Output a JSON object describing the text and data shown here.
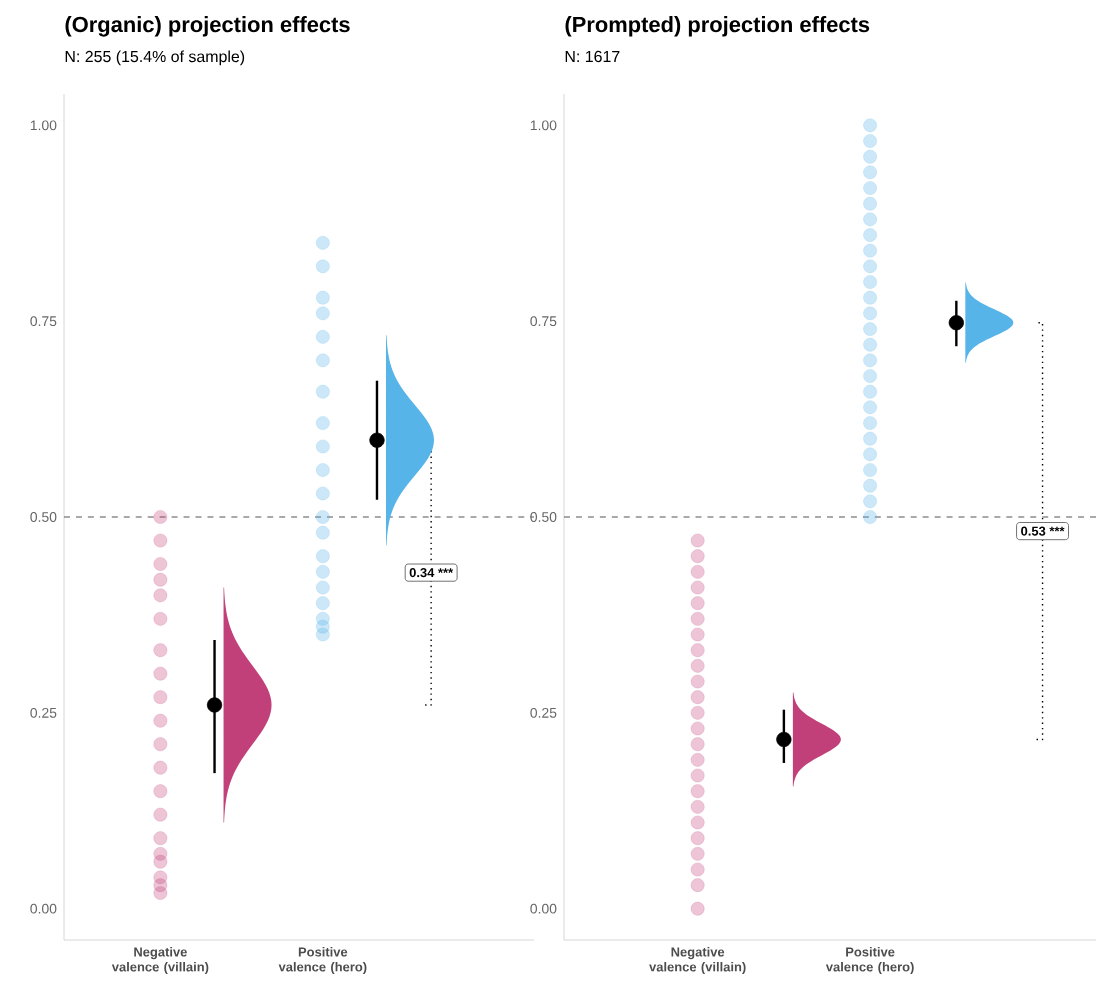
{
  "chart_data": [
    {
      "type": "scatter",
      "title": "(Organic) projection effects",
      "subtitle": "N: 255 (15.4% of sample)",
      "categories": [
        "Negative valence (villain)",
        null,
        null,
        "Positive valence (hero)",
        null,
        null
      ],
      "ylim": [
        -0.04,
        1.04
      ],
      "yticks": [
        {
          "value": 0,
          "label": "0.00"
        },
        {
          "value": 0.25,
          "label": "0.25"
        },
        {
          "value": 0.5,
          "label": "0.50"
        },
        {
          "value": 0.75,
          "label": "0.75"
        },
        {
          "value": 1,
          "label": "1.00"
        }
      ],
      "ref_lines": [
        {
          "axis": "y",
          "value": 0.5,
          "color": "#555555",
          "line_style": "dashed"
        }
      ],
      "annotations": [
        "0.34 ***"
      ],
      "series": [
        {
          "color": "#c2407a",
          "x": [
            "Negative valence (villain)",
            "Negative valence (villain)",
            "Negative valence (villain)",
            "Negative valence (villain)",
            "Negative valence (villain)",
            "Negative valence (villain)",
            "Negative valence (villain)",
            "Negative valence (villain)",
            "Negative valence (villain)",
            "Negative valence (villain)",
            "Negative valence (villain)",
            "Negative valence (villain)",
            "Negative valence (villain)",
            "Negative valence (villain)",
            "Negative valence (villain)",
            "Negative valence (villain)",
            "Negative valence (villain)",
            "Negative valence (villain)",
            "Negative valence (villain)",
            "Negative valence (villain)"
          ],
          "values": [
            0.5,
            0.47,
            0.44,
            0.42,
            0.4,
            0.37,
            0.33,
            0.3,
            0.27,
            0.24,
            0.21,
            0.18,
            0.15,
            0.12,
            0.09,
            0.07,
            0.06,
            0.04,
            0.03,
            0.02
          ]
        },
        {
          "color": "#56b4e9",
          "x": [
            "Positive valence (hero)",
            "Positive valence (hero)",
            "Positive valence (hero)",
            "Positive valence (hero)",
            "Positive valence (hero)",
            "Positive valence (hero)",
            "Positive valence (hero)",
            "Positive valence (hero)",
            "Positive valence (hero)",
            "Positive valence (hero)",
            "Positive valence (hero)",
            "Positive valence (hero)",
            "Positive valence (hero)",
            "Positive valence (hero)",
            "Positive valence (hero)",
            "Positive valence (hero)",
            "Positive valence (hero)",
            "Positive valence (hero)",
            "Positive valence (hero)",
            "Positive valence (hero)"
          ],
          "values": [
            0.85,
            0.82,
            0.78,
            0.76,
            0.73,
            0.7,
            0.66,
            0.62,
            0.59,
            0.56,
            0.53,
            0.5,
            0.48,
            0.45,
            0.43,
            0.41,
            0.39,
            0.37,
            0.36,
            0.35
          ]
        },
        {
          "marker": "circle",
          "color": "#000000",
          "values": [
            null,
            0.26,
            null,
            null,
            0.598,
            null
          ],
          "errors": [
            null,
            [
              0.173,
              0.343
            ],
            null,
            null,
            [
              0.522,
              0.674
            ],
            null
          ]
        }
      ]
    },
    {
      "type": "scatter",
      "title": "(Prompted) projection effects",
      "subtitle": "N: 1617",
      "categories": [
        "Negative valence (villain)",
        null,
        "Positive valence (hero)",
        null,
        null
      ],
      "ylim": [
        -0.04,
        1.04
      ],
      "yticks": [
        {
          "value": 0,
          "label": "0.00"
        },
        {
          "value": 0.25,
          "label": "0.25"
        },
        {
          "value": 0.5,
          "label": "0.50"
        },
        {
          "value": 0.75,
          "label": "0.75"
        },
        {
          "value": 1,
          "label": "1.00"
        }
      ],
      "ref_lines": [
        {
          "axis": "y",
          "value": 0.5,
          "color": "#555555",
          "line_style": "dashed"
        }
      ],
      "annotations": [
        "0.53 ***"
      ],
      "series": [
        {
          "color": "#c2407a",
          "x": [
            "Negative valence (villain)",
            "Negative valence (villain)",
            "Negative valence (villain)",
            "Negative valence (villain)",
            "Negative valence (villain)",
            "Negative valence (villain)",
            "Negative valence (villain)",
            "Negative valence (villain)",
            "Negative valence (villain)",
            "Negative valence (villain)",
            "Negative valence (villain)",
            "Negative valence (villain)",
            "Negative valence (villain)",
            "Negative valence (villain)",
            "Negative valence (villain)",
            "Negative valence (villain)",
            "Negative valence (villain)",
            "Negative valence (villain)",
            "Negative valence (villain)",
            "Negative valence (villain)",
            "Negative valence (villain)",
            "Negative valence (villain)",
            "Negative valence (villain)",
            "Negative valence (villain)"
          ],
          "values": [
            0.47,
            0.45,
            0.43,
            0.41,
            0.39,
            0.37,
            0.35,
            0.33,
            0.31,
            0.29,
            0.27,
            0.25,
            0.23,
            0.21,
            0.19,
            0.17,
            0.15,
            0.13,
            0.11,
            0.09,
            0.07,
            0.05,
            0.03,
            0.0
          ]
        },
        {
          "color": "#56b4e9",
          "x": [
            "Positive valence (hero)",
            "Positive valence (hero)",
            "Positive valence (hero)",
            "Positive valence (hero)",
            "Positive valence (hero)",
            "Positive valence (hero)",
            "Positive valence (hero)",
            "Positive valence (hero)",
            "Positive valence (hero)",
            "Positive valence (hero)",
            "Positive valence (hero)",
            "Positive valence (hero)",
            "Positive valence (hero)",
            "Positive valence (hero)",
            "Positive valence (hero)",
            "Positive valence (hero)",
            "Positive valence (hero)",
            "Positive valence (hero)",
            "Positive valence (hero)",
            "Positive valence (hero)",
            "Positive valence (hero)",
            "Positive valence (hero)",
            "Positive valence (hero)",
            "Positive valence (hero)",
            "Positive valence (hero)",
            "Positive valence (hero)"
          ],
          "values": [
            1.0,
            0.98,
            0.96,
            0.94,
            0.92,
            0.9,
            0.88,
            0.86,
            0.84,
            0.82,
            0.8,
            0.78,
            0.76,
            0.74,
            0.72,
            0.7,
            0.68,
            0.66,
            0.64,
            0.62,
            0.6,
            0.58,
            0.56,
            0.54,
            0.52,
            0.5
          ]
        },
        {
          "marker": "circle",
          "color": "#000000",
          "values": [
            null,
            0.216,
            null,
            0.748,
            null
          ],
          "errors": [
            null,
            [
              0.186,
              0.254
            ],
            null,
            [
              0.718,
              0.776
            ],
            null
          ]
        }
      ]
    }
  ]
}
